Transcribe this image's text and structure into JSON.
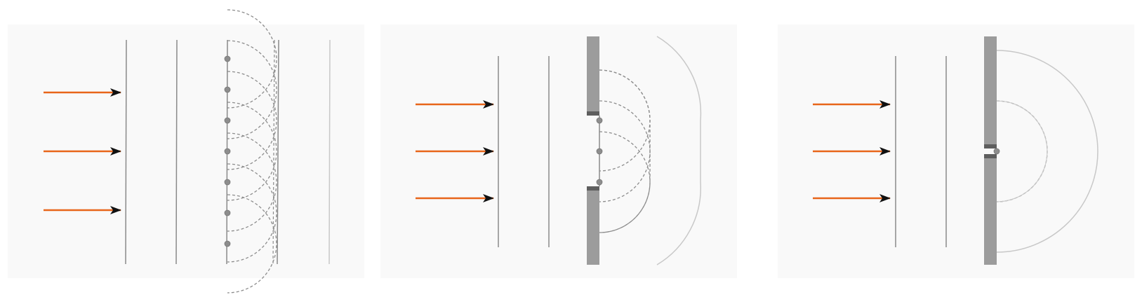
{
  "colors": {
    "background": "#ffffff",
    "panel": "#f9f9f9",
    "arrow_shaft": "#e8651a",
    "arrow_head": "#111111",
    "wavefront": "#8a8a8a",
    "wavelet": "#8c8c8c",
    "source_point": "#8d8d8d",
    "barrier": "#9c9c9c",
    "barrier_edge": "#5e5e5e",
    "faded_wave": "#c8c8c8"
  },
  "icons": {
    "arrow": "arrow-right-icon",
    "source": "point-source-icon"
  },
  "panels": [
    {
      "scene": "open-wavefront",
      "incoming_arrows": 3,
      "plane_wavefronts": 5,
      "point_sources": 7
    },
    {
      "scene": "wide-slit",
      "incoming_arrows": 3,
      "plane_wavefronts": 2,
      "point_sources": 3
    },
    {
      "scene": "narrow-slit",
      "incoming_arrows": 3,
      "plane_wavefronts": 2,
      "point_sources": 1
    }
  ]
}
